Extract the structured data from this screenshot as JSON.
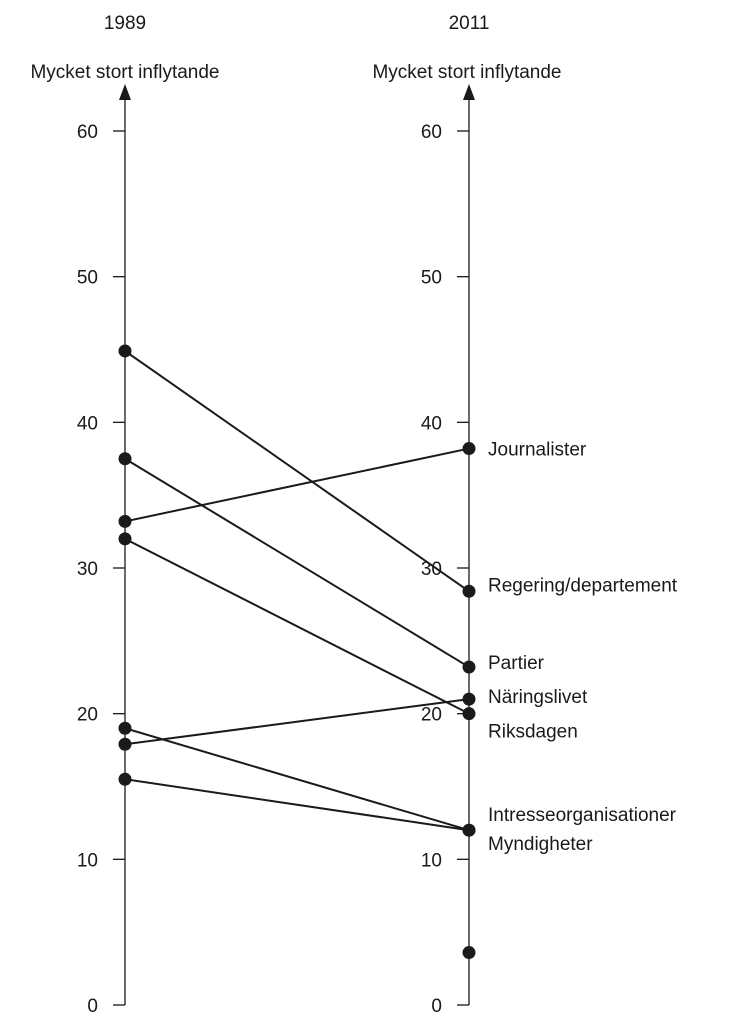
{
  "chart_data": {
    "type": "slope",
    "axes": [
      {
        "year": "1989",
        "title": "Mycket stort inflytande"
      },
      {
        "year": "2011",
        "title": "Mycket stort inflytande"
      }
    ],
    "ylim": [
      0,
      60
    ],
    "ticks": [
      0,
      10,
      20,
      30,
      40,
      50,
      60
    ],
    "series": [
      {
        "label": "Journalister",
        "values": [
          33.2,
          38.2
        ]
      },
      {
        "label": "Regering/departement",
        "values": [
          44.9,
          28.4
        ]
      },
      {
        "label": "Partier",
        "values": [
          37.5,
          23.2
        ]
      },
      {
        "label": "Näringslivet",
        "values": [
          17.9,
          21.0
        ]
      },
      {
        "label": "Riksdagen",
        "values": [
          32.0,
          20.0
        ]
      },
      {
        "label": "Intresseorganisationer",
        "values": [
          19.0,
          12.0
        ]
      },
      {
        "label": "Myndigheter",
        "values": [
          15.5,
          12.0
        ]
      },
      {
        "label": "",
        "values": [
          null,
          3.6
        ]
      }
    ]
  }
}
